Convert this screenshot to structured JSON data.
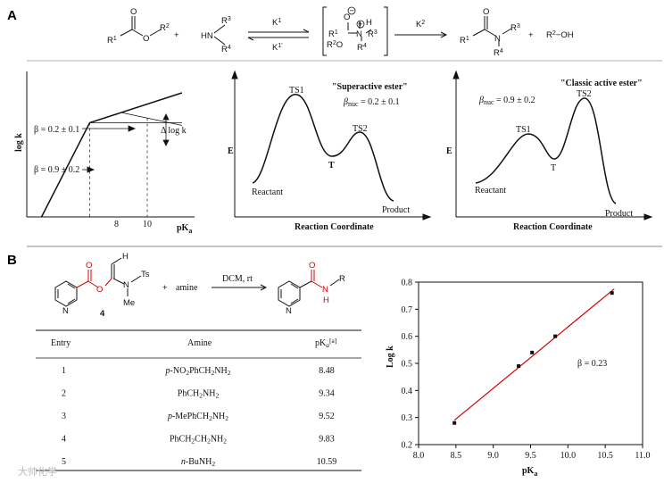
{
  "panel_a": {
    "letter": "A",
    "scheme": {
      "ester": {
        "r1": "R",
        "r1_sup": "1",
        "o": "O",
        "r2": "R",
        "r2_sup": "2"
      },
      "plus1": "+",
      "amine": {
        "hn": "HN",
        "r3": "R",
        "r3_sup": "3",
        "r4": "R",
        "r4_sup": "4"
      },
      "k1": "K",
      "k1_sup": "1",
      "k1r": "K",
      "k1r_sup": "1'",
      "intermediate": {
        "o_minus": "O",
        "h": "H",
        "r1o": "R",
        "r1o_sup": "1",
        "r2o": "R",
        "r2o_sup": "2",
        "ring_o": "O",
        "n": "N",
        "r3": "R",
        "r3_sup": "3",
        "r4": "R",
        "r4_sup": "4",
        "minus": "−",
        "plus": "+",
        "o_top": "O",
        "o_mid": "O"
      },
      "k2": "K",
      "k2_sup": "2",
      "amide": {
        "r1": "R",
        "r1_sup": "1",
        "o": "O",
        "n": "N",
        "r3": "R",
        "r3_sup": "3",
        "r4": "R",
        "r4_sup": "4"
      },
      "plus2": "+",
      "alcohol": "R",
      "alcohol_sup": "2",
      "alcohol_oh": "−OH"
    },
    "bronsted": {
      "ylabel": "log k",
      "xlabel": "pK",
      "xlabel_sub": "a",
      "beta_upper": "β = 0.2 ± 0.1",
      "beta_lower": "β = 0.9 ± 0.2",
      "delta_label": "Δ log k",
      "tick_8": "8",
      "tick_10": "10",
      "chart_data": {
        "type": "line",
        "x": [
          5.7,
          8,
          12.4
        ],
        "y": [
          0,
          2.2,
          2.9
        ],
        "xlim": [
          5,
          13
        ],
        "ylim": [
          0,
          3.4
        ]
      }
    },
    "profile_super": {
      "title": "\"Superactive ester\"",
      "beta": "β",
      "beta_sub": "nuc",
      "beta_val": " = 0.2 ± 0.1",
      "ts1": "TS1",
      "ts2": "TS2",
      "t": "T",
      "reactant": "Reactant",
      "product": "Product",
      "ylabel": "E",
      "xlabel": "Reaction Coordinate"
    },
    "profile_classic": {
      "title": "\"Classic active ester\"",
      "beta": "β",
      "beta_sub": "nuc",
      "beta_val": " = 0.9 ± 0.2",
      "ts1": "TS1",
      "ts2": "TS2",
      "t": "T",
      "reactant": "Reactant",
      "product": "Product",
      "ylabel": "E",
      "xlabel": "Reaction Coordinate"
    }
  },
  "panel_b": {
    "letter": "B",
    "reaction": {
      "ester_label": "4",
      "h": "H",
      "ts": "Ts",
      "n": "N",
      "me": "Me",
      "o1": "O",
      "o2": "O",
      "plus": "+",
      "amine": "amine",
      "conditions": "DCM, rt",
      "product_o": "O",
      "product_nh": "N",
      "product_h": "H",
      "product_r": "R",
      "ring_n": "N",
      "ring_n2": "N"
    },
    "table": {
      "headers": [
        "Entry",
        "Amine",
        "pK"
      ],
      "header_sub": "a",
      "header_sup": "[a]",
      "rows": [
        {
          "entry": "1",
          "amine_pre": "p",
          "amine": "-NO",
          "amine_sub": "2",
          "amine_post": "PhCH",
          "amine_sub2": "2",
          "amine_end": "NH",
          "amine_sub3": "2",
          "pka": "8.48"
        },
        {
          "entry": "2",
          "amine_pre": "",
          "amine": "PhCH",
          "amine_sub": "2",
          "amine_post": "NH",
          "amine_sub2": "2",
          "amine_end": "",
          "amine_sub3": "",
          "pka": "9.34"
        },
        {
          "entry": "3",
          "amine_pre": "p",
          "amine": "-MePhCH",
          "amine_sub": "2",
          "amine_post": "NH",
          "amine_sub2": "2",
          "amine_end": "",
          "amine_sub3": "",
          "pka": "9.52"
        },
        {
          "entry": "4",
          "amine_pre": "",
          "amine": "PhCH",
          "amine_sub": "2",
          "amine_post": "CH",
          "amine_sub2": "2",
          "amine_end": "NH",
          "amine_sub3": "2",
          "pka": "9.83"
        },
        {
          "entry": "5",
          "amine_pre": "n",
          "amine": "-BuNH",
          "amine_sub": "2",
          "amine_post": "",
          "amine_sub2": "",
          "amine_end": "",
          "amine_sub3": "",
          "pka": "10.59"
        }
      ]
    },
    "chart_data": {
      "type": "scatter",
      "x": [
        8.48,
        9.34,
        9.52,
        9.83,
        10.59
      ],
      "y": [
        0.28,
        0.49,
        0.54,
        0.6,
        0.76
      ],
      "fit": {
        "x": [
          8.48,
          10.62
        ],
        "y": [
          0.29,
          0.775
        ],
        "color": "#d40000"
      },
      "xlim": [
        8.0,
        11.0
      ],
      "ylim": [
        0.2,
        0.8
      ],
      "xticks": [
        "8.0",
        "8.5",
        "9.0",
        "9.5",
        "10.0",
        "10.5",
        "11.0"
      ],
      "yticks": [
        "0.2",
        "0.3",
        "0.4",
        "0.5",
        "0.6",
        "0.7",
        "0.8"
      ],
      "xlabel": "pK",
      "xlabel_sub": "a",
      "ylabel": "Log k",
      "annotation": "β = 0.23"
    }
  },
  "watermark": "大帅化学"
}
